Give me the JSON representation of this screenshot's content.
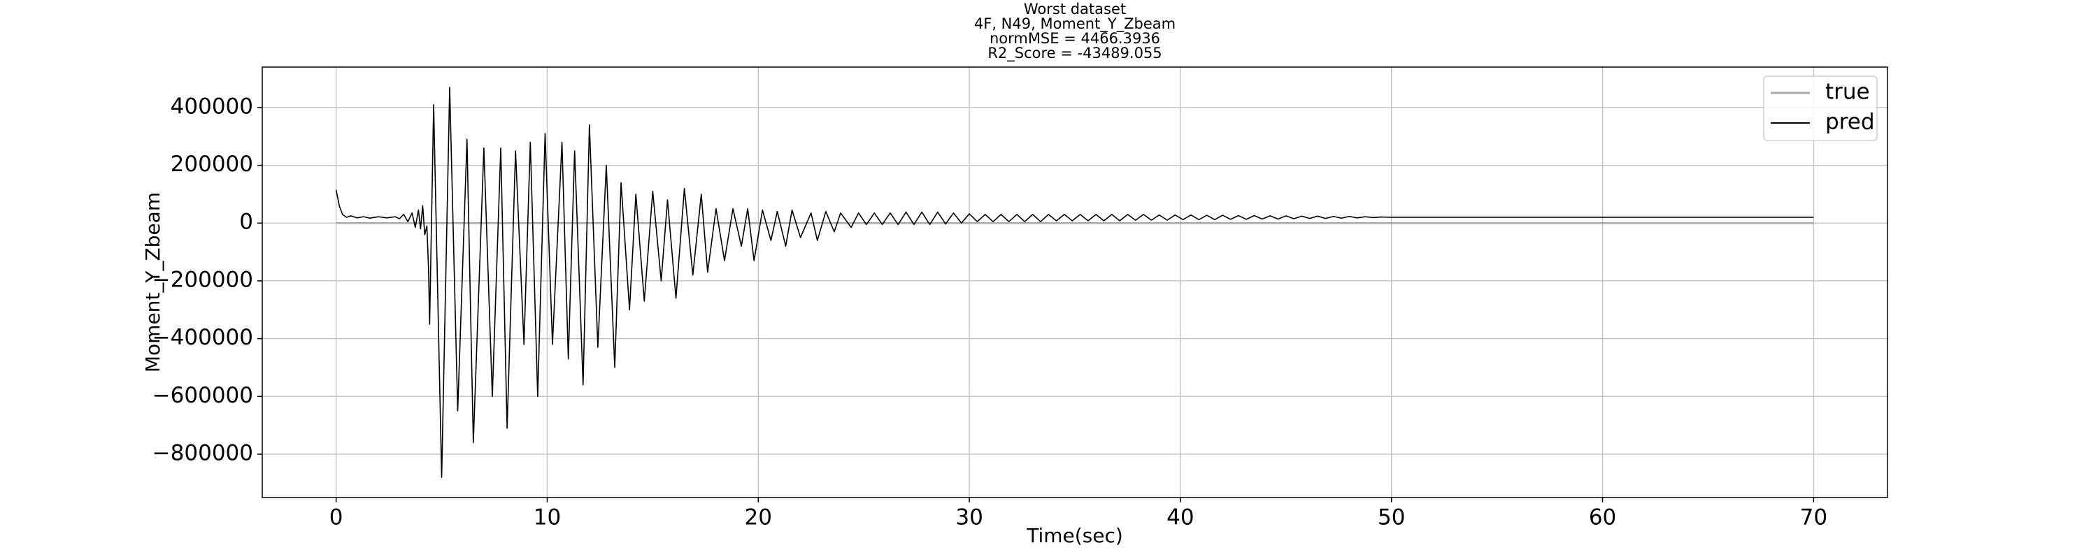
{
  "chart_data": {
    "type": "line",
    "title": [
      "Worst dataset",
      "4F, N49, Moment_Y_Zbeam",
      "normMSE = 4466.3936",
      "R2_Score = -43489.055"
    ],
    "x_label": "Time(sec)",
    "y_label": "Moment_Y_Zbeam",
    "xlim": [
      -3.5,
      73.5
    ],
    "ylim": [
      -950000,
      540000
    ],
    "xticks": [
      0,
      10,
      20,
      30,
      40,
      50,
      60,
      70
    ],
    "yticks": [
      {
        "value": -800000,
        "label": "−800000"
      },
      {
        "value": -600000,
        "label": "−600000"
      },
      {
        "value": -400000,
        "label": "−400000"
      },
      {
        "value": -200000,
        "label": "−200000"
      },
      0,
      200000,
      400000
    ],
    "grid": true,
    "legend_loc": "upper right",
    "series": [
      {
        "name": "true",
        "color": "#aaaaaa",
        "width": 2.5,
        "x": [
          0,
          70
        ],
        "values": [
          0,
          0
        ]
      },
      {
        "name": "pred",
        "color": "#000000",
        "width": 1.6,
        "x": [
          0,
          0.15,
          0.3,
          0.5,
          0.7,
          1.0,
          1.3,
          1.6,
          2.0,
          2.4,
          2.8,
          3.0,
          3.2,
          3.4,
          3.6,
          3.75,
          3.9,
          4.0,
          4.1,
          4.2,
          4.3,
          4.38,
          4.43,
          4.62,
          5.0,
          5.38,
          5.76,
          6.2,
          6.5,
          7.0,
          7.4,
          7.8,
          8.1,
          8.5,
          8.9,
          9.2,
          9.55,
          9.9,
          10.25,
          10.7,
          11.0,
          11.3,
          11.7,
          12.0,
          12.4,
          12.8,
          13.2,
          13.5,
          13.9,
          14.2,
          14.6,
          15.0,
          15.4,
          15.7,
          16.1,
          16.5,
          16.9,
          17.3,
          17.6,
          18.0,
          18.4,
          18.8,
          19.2,
          19.5,
          19.8,
          20.2,
          20.6,
          20.9,
          21.3,
          21.6,
          22.0,
          22.5,
          22.8,
          23.2,
          23.6,
          23.9,
          24.4,
          24.75,
          25.125,
          25.5,
          25.875,
          26.25,
          26.625,
          27.0,
          27.375,
          27.75,
          28.125,
          28.5,
          28.875,
          29.25,
          29.625,
          30.0,
          30.375,
          30.75,
          31.125,
          31.5,
          31.875,
          32.25,
          32.625,
          33.0,
          33.375,
          33.75,
          34.125,
          34.5,
          34.875,
          35.25,
          35.625,
          36.0,
          36.375,
          36.75,
          37.125,
          37.5,
          37.875,
          38.25,
          38.625,
          39.0,
          39.375,
          39.75,
          40.125,
          40.5,
          40.875,
          41.25,
          41.625,
          42.0,
          42.375,
          42.75,
          43.125,
          43.5,
          43.875,
          44.25,
          44.625,
          45.0,
          45.375,
          45.75,
          46.125,
          46.5,
          46.875,
          47.25,
          47.625,
          48.0,
          48.375,
          48.75,
          49.125,
          49.5,
          50,
          70
        ],
        "values": [
          115000,
          60000,
          30000,
          20000,
          25000,
          18000,
          22000,
          17000,
          22000,
          18000,
          22000,
          15000,
          30000,
          5000,
          35000,
          -15000,
          45000,
          -20000,
          60000,
          -40000,
          -10000,
          -160000,
          -350000,
          410000,
          -880000,
          470000,
          -650000,
          290000,
          -760000,
          260000,
          -600000,
          260000,
          -710000,
          250000,
          -420000,
          280000,
          -600000,
          310000,
          -420000,
          280000,
          -470000,
          250000,
          -560000,
          340000,
          -430000,
          200000,
          -500000,
          140000,
          -300000,
          100000,
          -270000,
          110000,
          -200000,
          80000,
          -260000,
          120000,
          -180000,
          100000,
          -170000,
          50000,
          -130000,
          50000,
          -80000,
          50000,
          -130000,
          45000,
          -60000,
          40000,
          -80000,
          45000,
          -50000,
          35000,
          -60000,
          40000,
          -30000,
          35000,
          -15000,
          35000,
          -5000,
          35000,
          -5000,
          35000,
          -5000,
          38000,
          -5000,
          38000,
          -5000,
          38000,
          -3000,
          35000,
          0,
          32000,
          5000,
          30000,
          5000,
          30000,
          5000,
          30000,
          5000,
          30000,
          5000,
          30000,
          8000,
          30000,
          8000,
          30000,
          8000,
          30000,
          8000,
          30000,
          8000,
          30000,
          10000,
          30000,
          10000,
          28000,
          10000,
          28000,
          12000,
          28000,
          12000,
          27000,
          12000,
          27000,
          13000,
          26000,
          13000,
          26000,
          14000,
          25000,
          14000,
          25000,
          15000,
          24000,
          16000,
          24000,
          16000,
          23000,
          17000,
          23000,
          18000,
          22000,
          19000,
          21000,
          20000,
          20000
        ]
      }
    ]
  }
}
